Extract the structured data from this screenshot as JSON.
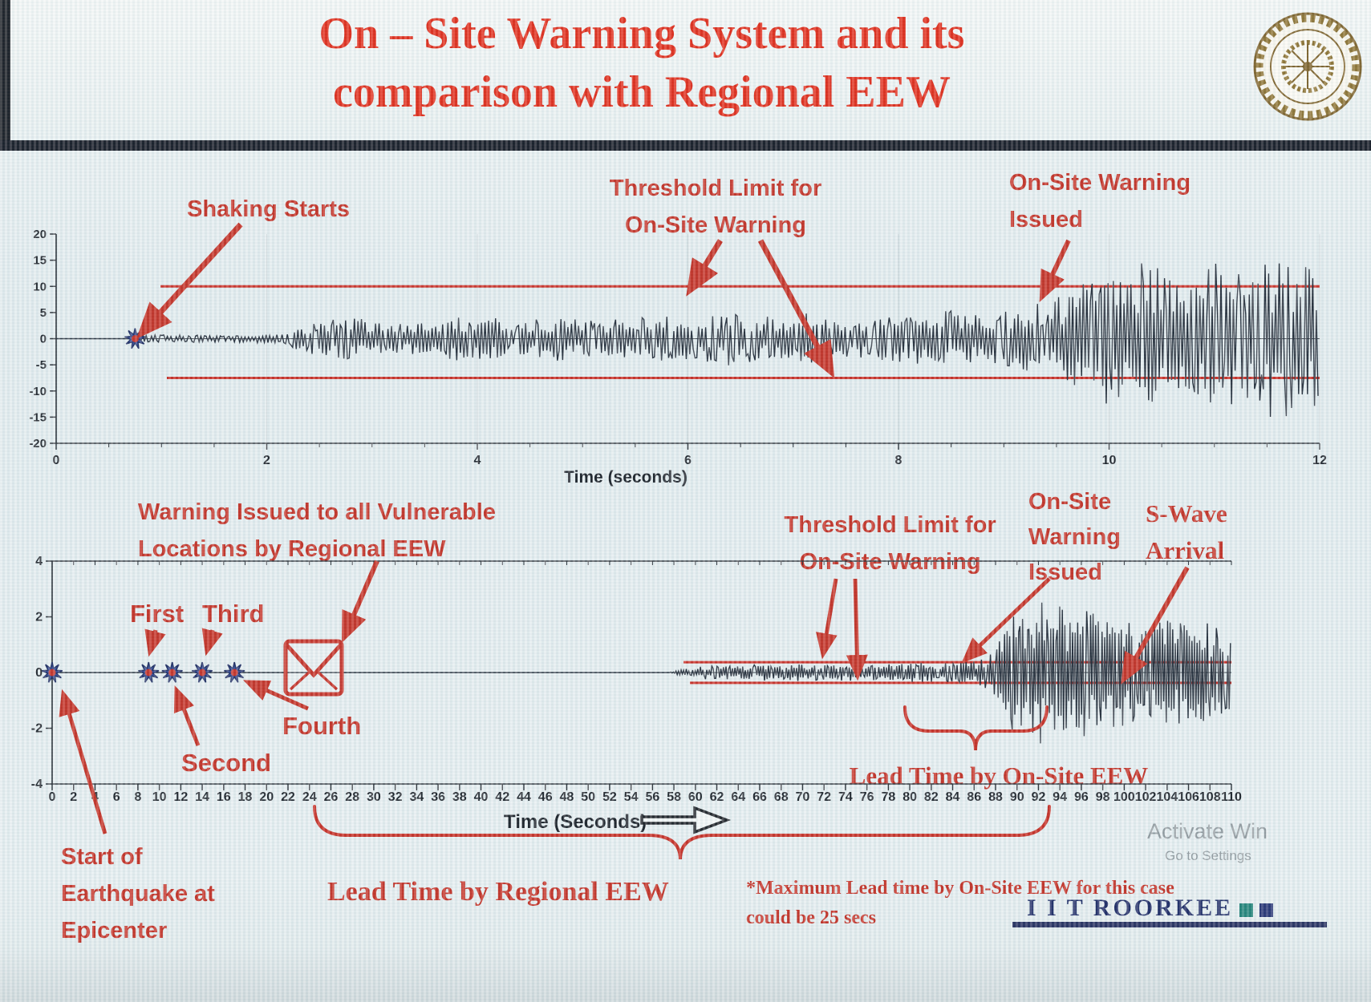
{
  "page": {
    "title_line1": "On – Site Warning System and its",
    "title_line2": "comparison with Regional EEW",
    "footer_brand": "I I T ROORKEE",
    "watermark_line1": "Activate Win",
    "watermark_line2": "Go to Settings"
  },
  "colors": {
    "accent_red": "#c3271b",
    "title_red": "#e1220f",
    "ink": "#10151d",
    "navy": "#1c2558",
    "star_blue": "#2e4496",
    "threshold_red": "#c8231a"
  },
  "annotations": {
    "shaking_starts": "Shaking Starts",
    "threshold_top_1": "Threshold Limit for",
    "threshold_top_2": "On-Site Warning",
    "onsite_top_1": "On-Site Warning",
    "onsite_top_2": "Issued",
    "warning_vulnerable_1": "Warning Issued to all Vulnerable",
    "warning_vulnerable_2": "Locations by Regional EEW",
    "threshold_bottom_1": "Threshold Limit for",
    "threshold_bottom_2": "On-Site Warning",
    "onsite_bottom_1": "On-Site",
    "onsite_bottom_2": "Warning",
    "onsite_bottom_3": "Issued",
    "swave_1": "S-Wave",
    "swave_2": "Arrival",
    "first": "First",
    "second": "Second",
    "third": "Third",
    "fourth": "Fourth",
    "start_epicenter_1": "Start of",
    "start_epicenter_2": "Earthquake at",
    "start_epicenter_3": "Epicenter",
    "lead_onsite": "Lead Time by On-Site EEW",
    "lead_regional": "Lead Time by Regional EEW",
    "note_1": "*Maximum Lead time by On-Site EEW for this case",
    "note_2": "could be 25 secs"
  },
  "chart_data": [
    {
      "type": "line",
      "name": "on-site-accelerogram",
      "xlabel": "Time (seconds)",
      "xlim": [
        0,
        12
      ],
      "xticks": [
        0,
        2,
        4,
        6,
        8,
        10,
        12
      ],
      "ylim": [
        -20,
        20
      ],
      "yticks": [
        20,
        15,
        10,
        5,
        0,
        -5,
        -10,
        -15,
        -20
      ],
      "grid": true,
      "thresholds": {
        "upper": 10,
        "lower": -7.5,
        "label": "Threshold Limit for On-Site Warning"
      },
      "events": [
        {
          "label": "Shaking Starts",
          "t": 0.75,
          "marker": "star"
        },
        {
          "label": "On-Site Warning Issued",
          "t": 9.4
        }
      ],
      "series": [
        {
          "name": "ground acceleration",
          "kind": "seismogram",
          "envelope": [
            [
              0,
              0
            ],
            [
              0.72,
              0
            ],
            [
              0.78,
              1.4
            ],
            [
              1.05,
              0.75
            ],
            [
              1.6,
              0.65
            ],
            [
              2.1,
              0.9
            ],
            [
              2.45,
              3.2
            ],
            [
              2.8,
              4.2
            ],
            [
              3.15,
              2.8
            ],
            [
              3.55,
              3.3
            ],
            [
              3.95,
              4.6
            ],
            [
              4.35,
              3.4
            ],
            [
              4.8,
              4.3
            ],
            [
              5.2,
              3.2
            ],
            [
              5.6,
              4.8
            ],
            [
              6.0,
              4.0
            ],
            [
              6.4,
              5.2
            ],
            [
              6.8,
              4.1
            ],
            [
              7.2,
              5.0
            ],
            [
              7.6,
              3.8
            ],
            [
              8.0,
              4.6
            ],
            [
              8.45,
              5.4
            ],
            [
              8.85,
              4.5
            ],
            [
              9.2,
              6.0
            ],
            [
              9.5,
              8.5
            ],
            [
              9.8,
              11.0
            ],
            [
              10.1,
              14.0
            ],
            [
              10.4,
              16.5
            ],
            [
              10.7,
              11.0
            ],
            [
              11.0,
              15.5
            ],
            [
              11.35,
              12.0
            ],
            [
              11.65,
              17.0
            ],
            [
              12.0,
              13.5
            ]
          ]
        }
      ]
    },
    {
      "type": "line",
      "name": "regional-eew-comparison-record",
      "xlabel": "Time (Seconds)",
      "xlim": [
        0,
        110
      ],
      "xticks": [
        0,
        2,
        4,
        6,
        8,
        10,
        12,
        14,
        16,
        18,
        20,
        22,
        24,
        26,
        28,
        30,
        32,
        34,
        36,
        38,
        40,
        42,
        44,
        46,
        48,
        50,
        52,
        54,
        56,
        58,
        60,
        62,
        64,
        66,
        68,
        70,
        72,
        74,
        76,
        78,
        80,
        82,
        84,
        86,
        88,
        90,
        92,
        94,
        96,
        98,
        100,
        102,
        104,
        106,
        108,
        110
      ],
      "ylim": [
        -4,
        4
      ],
      "yticks": [
        4,
        2,
        0,
        -2,
        -4
      ],
      "grid": false,
      "thresholds": {
        "upper": 0.37,
        "lower": -0.37,
        "label": "Threshold Limit for On-Site Warning"
      },
      "events": [
        {
          "label": "Start of Earthquake at Epicenter",
          "t": 0,
          "marker": "star"
        },
        {
          "label": "First",
          "t": 9,
          "marker": "star"
        },
        {
          "label": "Second",
          "t": 11.2,
          "marker": "star"
        },
        {
          "label": "Third",
          "t": 14,
          "marker": "star"
        },
        {
          "label": "Fourth",
          "t": 17,
          "marker": "star"
        },
        {
          "label": "Warning Issued to all Vulnerable Locations by Regional EEW",
          "t": 24.4,
          "marker": "message"
        },
        {
          "label": "On-Site Warning Issued",
          "t": 84
        },
        {
          "label": "S-Wave Arrival",
          "t": 93
        },
        {
          "label": "Lead Time by On-Site EEW",
          "span": [
            80,
            93
          ]
        },
        {
          "label": "Lead Time by Regional EEW",
          "span": [
            24,
            93
          ]
        }
      ],
      "series": [
        {
          "name": "ground acceleration",
          "kind": "seismogram",
          "envelope": [
            [
              0,
              0
            ],
            [
              57.5,
              0
            ],
            [
              58.5,
              0.12
            ],
            [
              60,
              0.2
            ],
            [
              62,
              0.28
            ],
            [
              64,
              0.22
            ],
            [
              66,
              0.3
            ],
            [
              68,
              0.24
            ],
            [
              70,
              0.32
            ],
            [
              72,
              0.26
            ],
            [
              74,
              0.3
            ],
            [
              76,
              0.26
            ],
            [
              78,
              0.3
            ],
            [
              80,
              0.38
            ],
            [
              82,
              0.34
            ],
            [
              84,
              0.42
            ],
            [
              86,
              0.4
            ],
            [
              87,
              0.55
            ],
            [
              88,
              0.9
            ],
            [
              89,
              1.6
            ],
            [
              90,
              2.8
            ],
            [
              91,
              2.0
            ],
            [
              92,
              3.0
            ],
            [
              93,
              2.1
            ],
            [
              94,
              2.6
            ],
            [
              95,
              2.0
            ],
            [
              96,
              2.4
            ],
            [
              98,
              1.9
            ],
            [
              100,
              2.2
            ],
            [
              102,
              1.8
            ],
            [
              104,
              2.1
            ],
            [
              106,
              1.7
            ],
            [
              108,
              1.9
            ],
            [
              110,
              1.6
            ]
          ]
        }
      ]
    }
  ]
}
